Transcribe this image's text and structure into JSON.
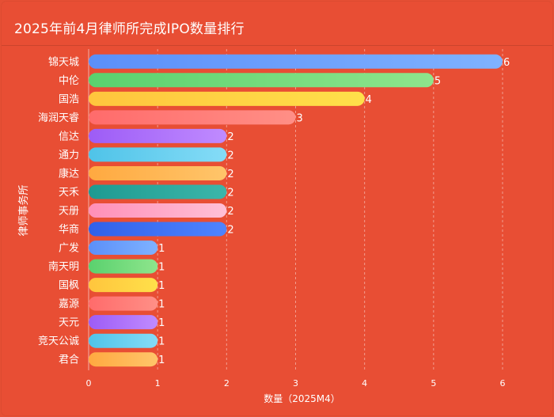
{
  "title": "2025年前4月律师所完成IPO数量排行",
  "chart_data": {
    "type": "bar",
    "orientation": "horizontal",
    "title": "2025年前4月律师所完成IPO数量排行",
    "xlabel": "数量（2025M4）",
    "ylabel": "律师事务所",
    "xlim": [
      0,
      6
    ],
    "xticks": [
      "0",
      "1",
      "2",
      "3",
      "4",
      "5",
      "6"
    ],
    "grid": true,
    "categories": [
      "锦天城",
      "中伦",
      "国浩",
      "海润天睿",
      "信达",
      "通力",
      "康达",
      "天禾",
      "天册",
      "华商",
      "广发",
      "南天明",
      "国枫",
      "嘉源",
      "天元",
      "竞天公诚",
      "君合"
    ],
    "values": [
      6,
      5,
      4,
      3,
      2,
      2,
      2,
      2,
      2,
      2,
      1,
      1,
      1,
      1,
      1,
      1,
      1
    ],
    "colors": [
      [
        "#5b8ff9",
        "#7fb2ff"
      ],
      [
        "#5ad16e",
        "#8ee58c"
      ],
      [
        "#ffc53d",
        "#ffe04a"
      ],
      [
        "#ff6b6b",
        "#ff8f86"
      ],
      [
        "#9d5cf6",
        "#c08bff"
      ],
      [
        "#4fc3e8",
        "#85dcf7"
      ],
      [
        "#ffa940",
        "#ffc56a"
      ],
      [
        "#1e9a91",
        "#3cb6aa"
      ],
      [
        "#ff8fb8",
        "#ffc0d6"
      ],
      [
        "#3060e8",
        "#4f84ff"
      ],
      [
        "#5b8ff9",
        "#7fb2ff"
      ],
      [
        "#5ad16e",
        "#8ee58c"
      ],
      [
        "#ffc53d",
        "#ffe04a"
      ],
      [
        "#ff6b6b",
        "#ff8f86"
      ],
      [
        "#9d5cf6",
        "#c08bff"
      ],
      [
        "#4fc3e8",
        "#85dcf7"
      ],
      [
        "#ffa940",
        "#ffc56a"
      ]
    ]
  }
}
